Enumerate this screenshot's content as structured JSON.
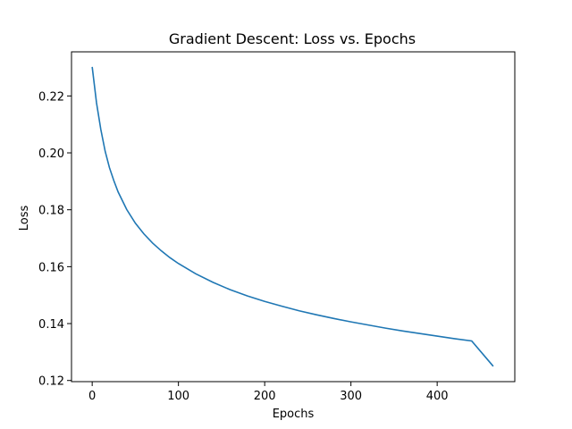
{
  "chart_data": {
    "type": "line",
    "title": "Gradient Descent: Loss vs. Epochs",
    "xlabel": "Epochs",
    "ylabel": "Loss",
    "xlim": [
      -24,
      490
    ],
    "ylim": [
      0.1196,
      0.2355
    ],
    "xticks": [
      0,
      100,
      200,
      300,
      400
    ],
    "yticks": [
      0.12,
      0.14,
      0.16,
      0.18,
      0.2,
      0.22
    ],
    "xtick_labels": [
      "0",
      "100",
      "200",
      "300",
      "400"
    ],
    "ytick_labels": [
      "0.12",
      "0.14",
      "0.16",
      "0.18",
      "0.20",
      "0.22"
    ],
    "grid": false,
    "series": [
      {
        "color": "#1f77b4",
        "x": [
          0,
          5,
          10,
          15,
          20,
          25,
          30,
          40,
          50,
          60,
          70,
          80,
          90,
          100,
          120,
          140,
          160,
          180,
          200,
          220,
          240,
          260,
          280,
          300,
          320,
          340,
          360,
          380,
          400,
          420,
          440,
          465
        ],
        "y": [
          0.2302,
          0.2176,
          0.2082,
          0.2006,
          0.1948,
          0.1903,
          0.1863,
          0.1801,
          0.1753,
          0.1715,
          0.1683,
          0.1656,
          0.1632,
          0.1611,
          0.1575,
          0.1545,
          0.1519,
          0.1497,
          0.1478,
          0.1461,
          0.1445,
          0.1431,
          0.1418,
          0.1406,
          0.1395,
          0.1384,
          0.1374,
          0.1365,
          0.1356,
          0.1347,
          0.1339,
          0.125
        ]
      }
    ]
  }
}
